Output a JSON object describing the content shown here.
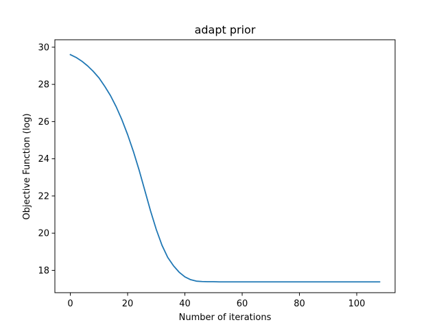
{
  "chart_data": {
    "type": "line",
    "title": "adapt prior",
    "xlabel": "Number of iterations",
    "ylabel": "Objective Function (log)",
    "xlim": [
      -5.4,
      113.4
    ],
    "ylim": [
      16.8,
      30.4
    ],
    "xticks": [
      0,
      20,
      40,
      60,
      80,
      100
    ],
    "yticks": [
      18,
      20,
      22,
      24,
      26,
      28,
      30
    ],
    "grid": false,
    "series": [
      {
        "color": "#1f77b4",
        "x": [
          0,
          2,
          4,
          6,
          8,
          10,
          12,
          14,
          16,
          18,
          20,
          22,
          24,
          26,
          28,
          30,
          32,
          34,
          36,
          38,
          40,
          42,
          44,
          46,
          48,
          50,
          52,
          54,
          56,
          60,
          70,
          80,
          90,
          100,
          108
        ],
        "y": [
          29.6,
          29.45,
          29.25,
          29.0,
          28.7,
          28.35,
          27.9,
          27.4,
          26.8,
          26.1,
          25.3,
          24.4,
          23.4,
          22.3,
          21.2,
          20.2,
          19.35,
          18.7,
          18.25,
          17.9,
          17.65,
          17.5,
          17.42,
          17.4,
          17.39,
          17.39,
          17.38,
          17.38,
          17.38,
          17.38,
          17.38,
          17.38,
          17.38,
          17.38,
          17.38
        ]
      }
    ]
  }
}
